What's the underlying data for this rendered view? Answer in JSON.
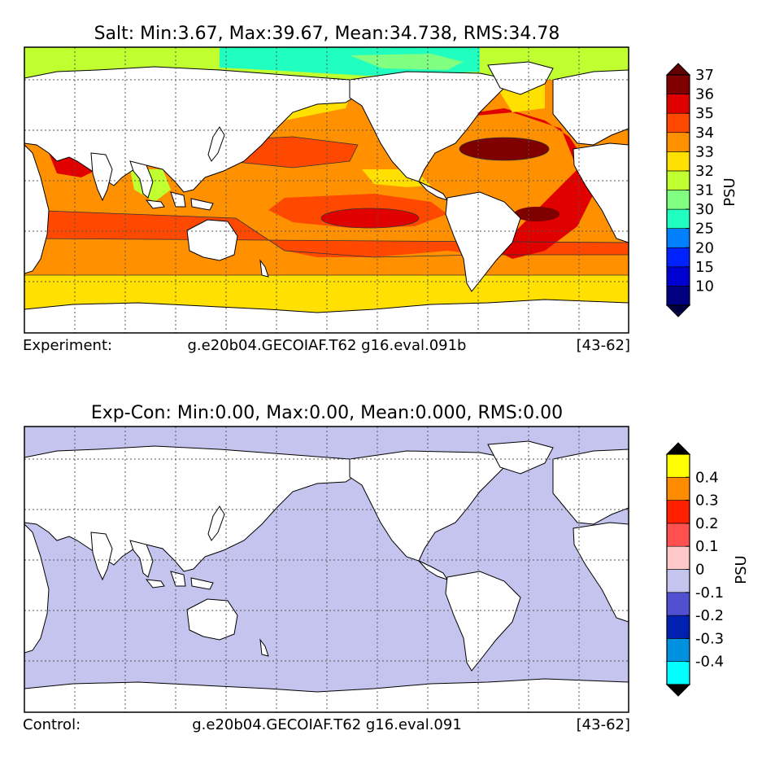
{
  "chart_data": [
    {
      "type": "heatmap",
      "title": "Salt: Min:3.67, Max:39.67, Mean:34.738, RMS:34.78",
      "caption": {
        "label": "Experiment:",
        "case": "g.e20b04.GECOIAF.T62 g16.eval.091b",
        "years": "[43-62]"
      },
      "colorbar": {
        "unit": "PSU",
        "ticks": [
          "10",
          "15",
          "20",
          "25",
          "30",
          "31",
          "32",
          "33",
          "34",
          "35",
          "36",
          "37"
        ],
        "colors": [
          "#000080",
          "#0000d0",
          "#0022ff",
          "#0080ff",
          "#20ffc0",
          "#80ff80",
          "#c0ff30",
          "#ffe000",
          "#ff9000",
          "#ff4800",
          "#e00000",
          "#800000"
        ],
        "extend_low": "#000040",
        "extend_high": "#600000"
      },
      "grid": true
    },
    {
      "type": "heatmap",
      "title": "Exp-Con: Min:0.00, Max:0.00, Mean:0.000, RMS:0.00",
      "caption": {
        "label": "Control:",
        "case": "g.e20b04.GECOIAF.T62 g16.eval.091",
        "years": "[43-62]"
      },
      "colorbar": {
        "unit": "PSU",
        "ticks": [
          "-0.4",
          "-0.3",
          "-0.2",
          "-0.1",
          "0",
          "0.1",
          "0.2",
          "0.3",
          "0.4"
        ],
        "colors": [
          "#00ffff",
          "#0090e0",
          "#0020b0",
          "#5050d0",
          "#c4c4ee",
          "#ffc8c8",
          "#ff5050",
          "#ff2000",
          "#ff8c00",
          "#ffff00"
        ],
        "extend_low": "#000000",
        "extend_high": "#000000"
      },
      "field_color": "#c4c4ee",
      "grid": true
    }
  ]
}
